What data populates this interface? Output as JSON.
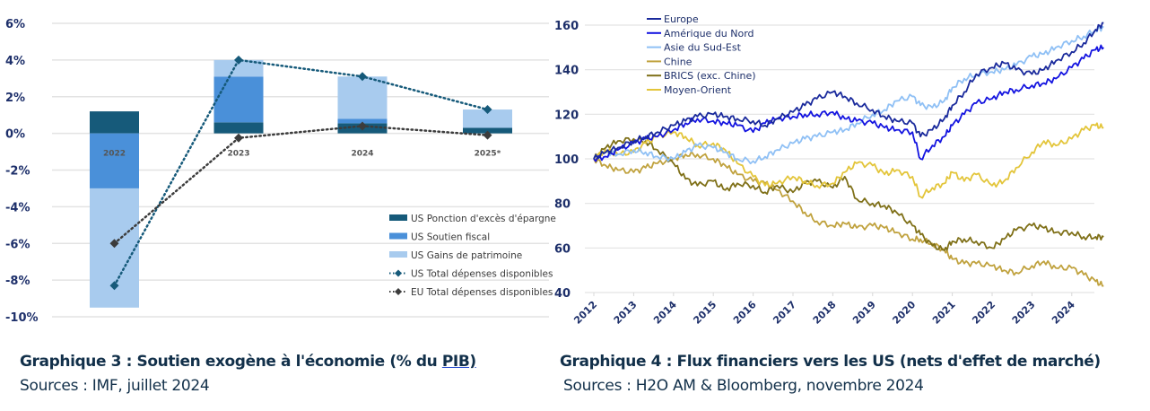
{
  "chart_data": [
    {
      "type": "bar",
      "stacked": true,
      "title": "Graphique 3 : Soutien exogène à l'économie (% du PIB)",
      "source": "Sources : IMF, juillet 2024",
      "categories": [
        "2022",
        "2023",
        "2024",
        "2025*"
      ],
      "yticks": [
        "6%",
        "4%",
        "2%",
        "0%",
        "-2%",
        "-4%",
        "-6%",
        "-8%",
        "-10%"
      ],
      "ylim": [
        -10,
        6
      ],
      "grid": true,
      "legend_position": "bottom-right",
      "series": [
        {
          "name": "US Ponction d'excès d'épargne",
          "kind": "bar",
          "color": "#165a7a",
          "values": [
            1.2,
            0.6,
            0.55,
            0.3
          ]
        },
        {
          "name": "US Soutien fiscal",
          "kind": "bar",
          "color": "#4a90d9",
          "values": [
            -3.0,
            2.5,
            0.25,
            0.0
          ]
        },
        {
          "name": "US Gains de patrimoine",
          "kind": "bar",
          "color": "#a8cbee",
          "values": [
            -6.5,
            0.9,
            2.3,
            1.0
          ]
        },
        {
          "name": "US Total dépenses disponibles",
          "kind": "line",
          "color": "#165a7a",
          "values": [
            -8.3,
            4.0,
            3.1,
            1.3
          ]
        },
        {
          "name": "EU Total dépenses disponibles",
          "kind": "line",
          "color": "#3c3c3c",
          "values": [
            -6.0,
            -0.25,
            0.4,
            -0.1
          ]
        }
      ]
    },
    {
      "type": "line",
      "title": "Graphique 4 : Flux financiers vers les US (nets d'effet de marché)",
      "source": "Sources : H2O AM & Bloomberg, novembre 2024",
      "xticks": [
        "2012",
        "2013",
        "2014",
        "2015",
        "2016",
        "2017",
        "2018",
        "2019",
        "2020",
        "2021",
        "2022",
        "2023",
        "2024"
      ],
      "yticks": [
        "160",
        "140",
        "120",
        "100",
        "80",
        "60",
        "40"
      ],
      "ylim": [
        40,
        160
      ],
      "xlim": [
        2012,
        2024.8
      ],
      "grid": true,
      "legend_position": "top-left",
      "series": [
        {
          "name": "Europe",
          "color": "#1a2a9c",
          "x": [
            2012,
            2012.3,
            2012.6,
            2013,
            2013.3,
            2013.6,
            2014,
            2014.3,
            2014.6,
            2015,
            2015.3,
            2015.6,
            2016,
            2016.3,
            2016.6,
            2017,
            2017.3,
            2017.6,
            2018,
            2018.3,
            2018.6,
            2019,
            2019.3,
            2019.6,
            2020,
            2020.2,
            2020.5,
            2020.8,
            2021,
            2021.3,
            2021.6,
            2022,
            2022.3,
            2022.6,
            2023,
            2023.3,
            2023.6,
            2024,
            2024.3,
            2024.6,
            2024.8
          ],
          "y": [
            100,
            103,
            105,
            108,
            110,
            112,
            115,
            117,
            119,
            120,
            119,
            118,
            117,
            115,
            118,
            121,
            124,
            127,
            130,
            128,
            125,
            122,
            119,
            117,
            116,
            110,
            113,
            118,
            124,
            130,
            138,
            141,
            143,
            140,
            138,
            140,
            144,
            148,
            152,
            158,
            161
          ]
        },
        {
          "name": "Amérique du Nord",
          "color": "#1414e0",
          "x": [
            2012,
            2012.3,
            2012.6,
            2013,
            2013.3,
            2013.6,
            2014,
            2014.3,
            2014.6,
            2015,
            2015.3,
            2015.6,
            2016,
            2016.3,
            2016.6,
            2017,
            2017.3,
            2017.6,
            2018,
            2018.3,
            2018.6,
            2019,
            2019.3,
            2019.6,
            2020,
            2020.2,
            2020.5,
            2020.8,
            2021,
            2021.3,
            2021.6,
            2022,
            2022.3,
            2022.6,
            2023,
            2023.3,
            2023.6,
            2024,
            2024.3,
            2024.6,
            2024.8
          ],
          "y": [
            100,
            101,
            104,
            107,
            109,
            110,
            113,
            116,
            118,
            117,
            116,
            115,
            112,
            116,
            118,
            119,
            120,
            120,
            121,
            118,
            117,
            116,
            114,
            113,
            112,
            100,
            106,
            110,
            115,
            120,
            125,
            127,
            130,
            131,
            133,
            134,
            136,
            141,
            145,
            149,
            150
          ]
        },
        {
          "name": "Asie du Sud-Est",
          "color": "#8fc0f5",
          "x": [
            2012,
            2012.3,
            2012.6,
            2013,
            2013.3,
            2013.6,
            2014,
            2014.3,
            2014.6,
            2015,
            2015.3,
            2015.6,
            2016,
            2016.3,
            2016.6,
            2017,
            2017.3,
            2017.6,
            2018,
            2018.3,
            2018.6,
            2019,
            2019.3,
            2019.6,
            2020,
            2020.2,
            2020.5,
            2020.8,
            2021,
            2021.3,
            2021.6,
            2022,
            2022.3,
            2022.6,
            2023,
            2023.3,
            2023.6,
            2024,
            2024.3,
            2024.6,
            2024.8
          ],
          "y": [
            100,
            103,
            102,
            104,
            103,
            101,
            100,
            103,
            106,
            105,
            103,
            100,
            99,
            101,
            104,
            107,
            109,
            110,
            112,
            113,
            116,
            120,
            122,
            126,
            128,
            124,
            123,
            126,
            132,
            136,
            138,
            139,
            140,
            142,
            146,
            147,
            150,
            153,
            155,
            158,
            159
          ]
        },
        {
          "name": "Chine",
          "color": "#c0a23e",
          "x": [
            2012,
            2012.3,
            2012.6,
            2013,
            2013.3,
            2013.6,
            2014,
            2014.3,
            2014.6,
            2015,
            2015.3,
            2015.6,
            2016,
            2016.3,
            2016.6,
            2017,
            2017.3,
            2017.6,
            2018,
            2018.3,
            2018.6,
            2019,
            2019.3,
            2019.6,
            2020,
            2020.2,
            2020.5,
            2020.8,
            2021,
            2021.3,
            2021.6,
            2022,
            2022.3,
            2022.6,
            2023,
            2023.3,
            2023.6,
            2024,
            2024.3,
            2024.6,
            2024.8
          ],
          "y": [
            100,
            97,
            95,
            94,
            96,
            98,
            100,
            102,
            102,
            100,
            97,
            93,
            90,
            89,
            86,
            81,
            76,
            72,
            70,
            71,
            69,
            70,
            69,
            67,
            64,
            64,
            62,
            59,
            55,
            53,
            53,
            52,
            50,
            49,
            52,
            54,
            51,
            51,
            48,
            45,
            43
          ]
        },
        {
          "name": "BRICS (exc. Chine)",
          "color": "#7f7018",
          "x": [
            2012,
            2012.3,
            2012.6,
            2013,
            2013.3,
            2013.6,
            2014,
            2014.3,
            2014.6,
            2015,
            2015.3,
            2015.6,
            2016,
            2016.3,
            2016.6,
            2017,
            2017.3,
            2017.6,
            2018,
            2018.3,
            2018.6,
            2019,
            2019.3,
            2019.6,
            2020,
            2020.2,
            2020.5,
            2020.8,
            2021,
            2021.3,
            2021.6,
            2022,
            2022.3,
            2022.6,
            2023,
            2023.3,
            2023.6,
            2024,
            2024.3,
            2024.6,
            2024.8
          ],
          "y": [
            100,
            105,
            108,
            109,
            108,
            104,
            98,
            91,
            88,
            90,
            86,
            89,
            88,
            85,
            88,
            85,
            89,
            90,
            87,
            92,
            82,
            80,
            79,
            76,
            70,
            66,
            61,
            59,
            63,
            64,
            63,
            60,
            64,
            68,
            70,
            69,
            67,
            67,
            65,
            65,
            65
          ]
        },
        {
          "name": "Moyen-Orient",
          "color": "#e3c53a",
          "x": [
            2012,
            2012.3,
            2012.6,
            2013,
            2013.3,
            2013.6,
            2014,
            2014.3,
            2014.6,
            2015,
            2015.3,
            2015.6,
            2016,
            2016.3,
            2016.6,
            2017,
            2017.3,
            2017.6,
            2018,
            2018.3,
            2018.6,
            2019,
            2019.3,
            2019.6,
            2020,
            2020.2,
            2020.5,
            2020.8,
            2021,
            2021.3,
            2021.6,
            2022,
            2022.3,
            2022.6,
            2023,
            2023.3,
            2023.6,
            2024,
            2024.3,
            2024.6,
            2024.8
          ],
          "y": [
            100,
            104,
            102,
            103,
            107,
            110,
            112,
            110,
            106,
            107,
            104,
            98,
            92,
            88,
            89,
            92,
            90,
            88,
            89,
            94,
            98,
            97,
            93,
            95,
            92,
            83,
            87,
            89,
            94,
            90,
            93,
            88,
            90,
            96,
            103,
            108,
            106,
            109,
            113,
            115,
            114
          ]
        }
      ]
    }
  ],
  "captions": {
    "chart1_title_main": "Graphique 3 : Soutien exogène à l'économie (% du ",
    "chart1_title_link": "PIB)",
    "chart1_source": "Sources : IMF, juillet 2024",
    "chart2_title": "Graphique 4 : Flux financiers vers les US (nets d'effet de marché)",
    "chart2_source": "Sources : H2O AM & Bloomberg, novembre 2024"
  }
}
